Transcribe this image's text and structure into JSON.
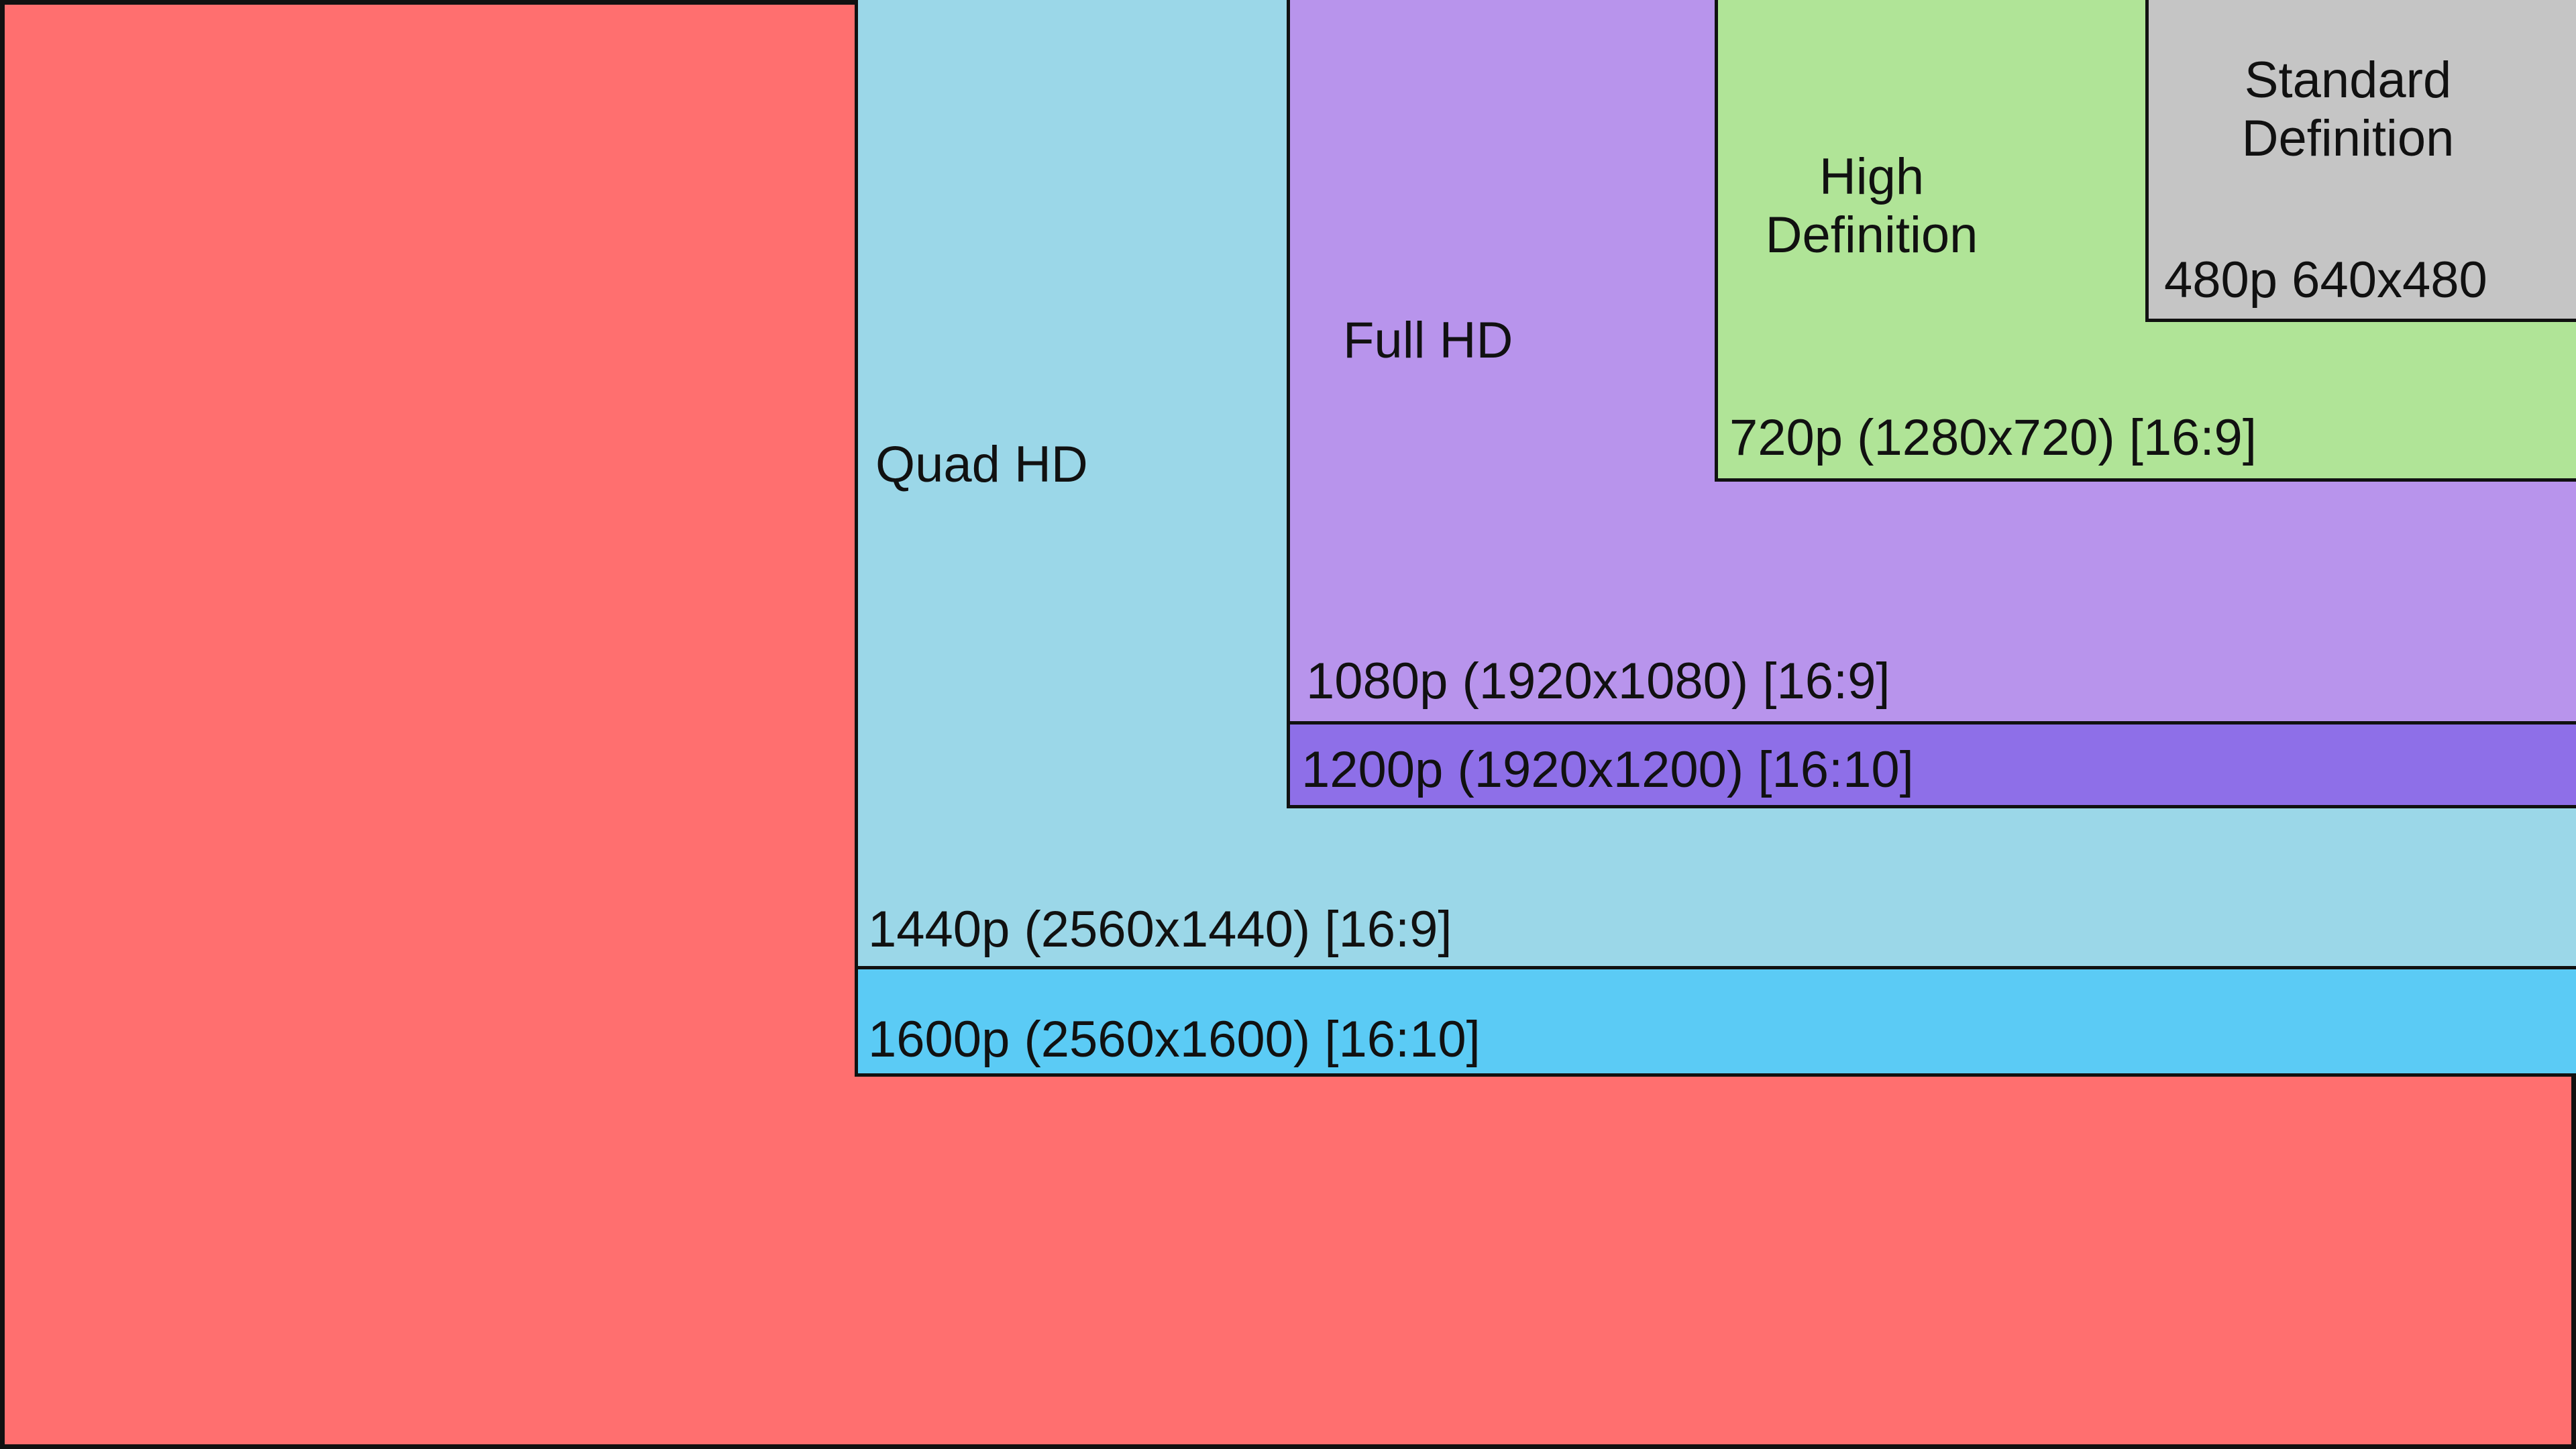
{
  "diagram": {
    "colors": {
      "r2160": "#ff6f6f",
      "r1600": "#5bcbf5",
      "r1440": "#9bd7e8",
      "r1200": "#8e6fe8",
      "r1080": "#b894ec",
      "r720": "#b0e497",
      "r480": "#c5c5c5"
    },
    "category_labels": {
      "quad_hd": "Quad HD",
      "full_hd": "Full HD",
      "high_definition": "High Definition",
      "standard_definition": "Standard Definition"
    },
    "resolution_labels": {
      "r480": "480p 640x480",
      "r720": "720p (1280x720) [16:9]",
      "r1080": "1080p (1920x1080) [16:9]",
      "r1200": "1200p (1920x1200) [16:10]",
      "r1440": "1440p (2560x1440) [16:9]",
      "r1600": "1600p (2560x1600) [16:10]"
    }
  }
}
